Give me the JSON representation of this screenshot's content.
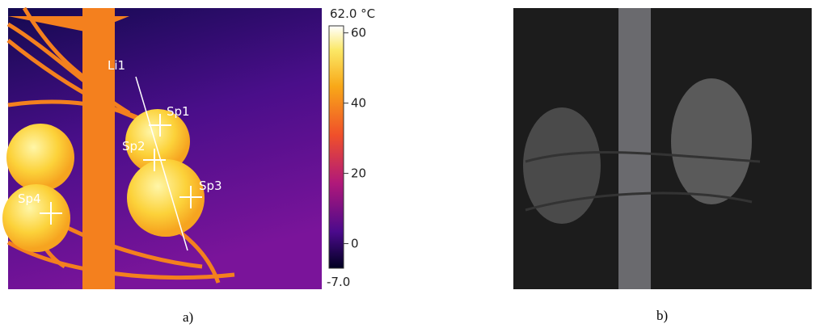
{
  "figure": {
    "panels": [
      {
        "label": "a)",
        "annotations": [
          "Li1",
          "Sp1",
          "Sp2",
          "Sp3",
          "Sp4"
        ],
        "colorbar": {
          "max": {
            "value": 62.0,
            "label": "62.0 °C"
          },
          "min": {
            "value": -7.0,
            "label": "-7.0"
          },
          "ticks": [
            60,
            40,
            20,
            0
          ]
        }
      },
      {
        "label": "b)"
      }
    ]
  }
}
